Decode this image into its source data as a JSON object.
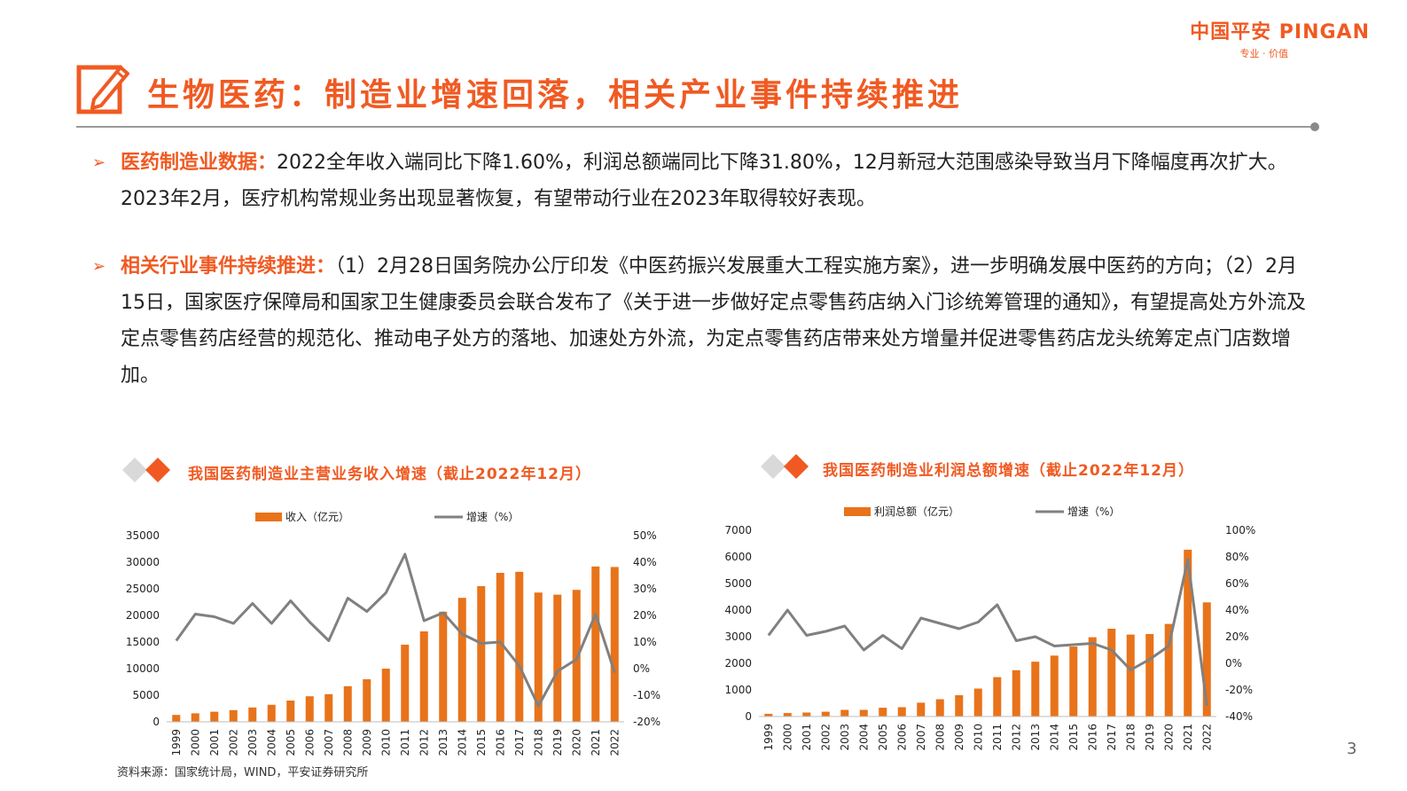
{
  "logo": {
    "brand": "中国平安 PINGAN",
    "tagline": "专业 · 价值"
  },
  "title": "生物医药：制造业增速回落，相关产业事件持续推进",
  "bullets": [
    {
      "key": "医药制造业数据：",
      "text": "2022全年收入端同比下降1.60%，利润总额端同比下降31.80%，12月新冠大范围感染导致当月下降幅度再次扩大。2023年2月，医疗机构常规业务出现显著恢复，有望带动行业在2023年取得较好表现。"
    },
    {
      "key": "相关行业事件持续推进：",
      "text": "（1）2月28日国务院办公厅印发《中医药振兴发展重大工程实施方案》，进一步明确发展中医药的方向；（2）2月15日，国家医疗保障局和国家卫生健康委员会联合发布了《关于进一步做好定点零售药店纳入门诊统筹管理的通知》，有望提高处方外流及定点零售药店经营的规范化、推动电子处方的落地、加速处方外流，为定点零售药店带来处方增量并促进零售药店龙头统筹定点门店数增加。"
    }
  ],
  "chart_data": [
    {
      "type": "bar",
      "title": "我国医药制造业主营业务收入增速（截止2022年12月）",
      "categories": [
        "1999",
        "2000",
        "2001",
        "2002",
        "2003",
        "2004",
        "2005",
        "2006",
        "2007",
        "2008",
        "2009",
        "2010",
        "2011",
        "2012",
        "2013",
        "2014",
        "2015",
        "2016",
        "2017",
        "2018",
        "2019",
        "2020",
        "2021",
        "2022"
      ],
      "series": [
        {
          "name": "收入（亿元）",
          "type": "bar",
          "axis": "left",
          "values": [
            1300,
            1600,
            1900,
            2200,
            2700,
            3200,
            4000,
            4800,
            5200,
            6700,
            8000,
            10000,
            14500,
            17000,
            20700,
            23300,
            25500,
            28000,
            28200,
            24300,
            23900,
            24800,
            29200,
            29100
          ]
        },
        {
          "name": "增速（%）",
          "type": "line",
          "axis": "right",
          "values": [
            10.5,
            20.5,
            19.5,
            17,
            24.5,
            17,
            25.5,
            17.5,
            10.5,
            26.5,
            21.5,
            28.5,
            43,
            18,
            21,
            13,
            9.5,
            10,
            1,
            -14,
            -1,
            3.5,
            20.5,
            -1.5
          ]
        }
      ],
      "ylim_left": [
        0,
        35000
      ],
      "yticks_left": [
        "0",
        "5000",
        "10000",
        "15000",
        "20000",
        "25000",
        "30000",
        "35000"
      ],
      "ylim_right": [
        -20,
        50
      ],
      "yticks_right": [
        "-20%",
        "-10%",
        "0%",
        "10%",
        "20%",
        "30%",
        "40%",
        "50%"
      ],
      "legend": "top-center",
      "colors": {
        "bar": "#e8731a",
        "line": "#808080"
      }
    },
    {
      "type": "bar",
      "title": "我国医药制造业利润总额增速（截止2022年12月）",
      "categories": [
        "1999",
        "2000",
        "2001",
        "2002",
        "2003",
        "2004",
        "2005",
        "2006",
        "2007",
        "2008",
        "2009",
        "2010",
        "2011",
        "2012",
        "2013",
        "2014",
        "2015",
        "2016",
        "2017",
        "2018",
        "2019",
        "2020",
        "2021",
        "2022"
      ],
      "series": [
        {
          "name": "利润总额（亿元）",
          "type": "bar",
          "axis": "left",
          "values": [
            100,
            130,
            150,
            180,
            250,
            250,
            330,
            350,
            520,
            650,
            800,
            1050,
            1480,
            1740,
            2060,
            2290,
            2630,
            2980,
            3300,
            3080,
            3100,
            3480,
            6270,
            4290
          ]
        },
        {
          "name": "增速（%）",
          "type": "line",
          "axis": "right",
          "values": [
            21,
            40,
            21,
            24,
            28,
            10,
            21,
            11,
            34,
            30,
            26,
            31,
            44,
            17,
            20,
            13,
            14,
            15,
            10,
            -5,
            3,
            13,
            78,
            -32
          ]
        }
      ],
      "ylim_left": [
        0,
        7000
      ],
      "yticks_left": [
        "0",
        "1000",
        "2000",
        "3000",
        "4000",
        "5000",
        "6000",
        "7000"
      ],
      "ylim_right": [
        -40,
        100
      ],
      "yticks_right": [
        "-40%",
        "-20%",
        "0%",
        "20%",
        "40%",
        "60%",
        "80%",
        "100%"
      ],
      "legend": "top-center",
      "colors": {
        "bar": "#e8731a",
        "line": "#808080"
      }
    }
  ],
  "source": "资料来源：国家统计局，WIND，平安证券研究所",
  "page_number": "3"
}
